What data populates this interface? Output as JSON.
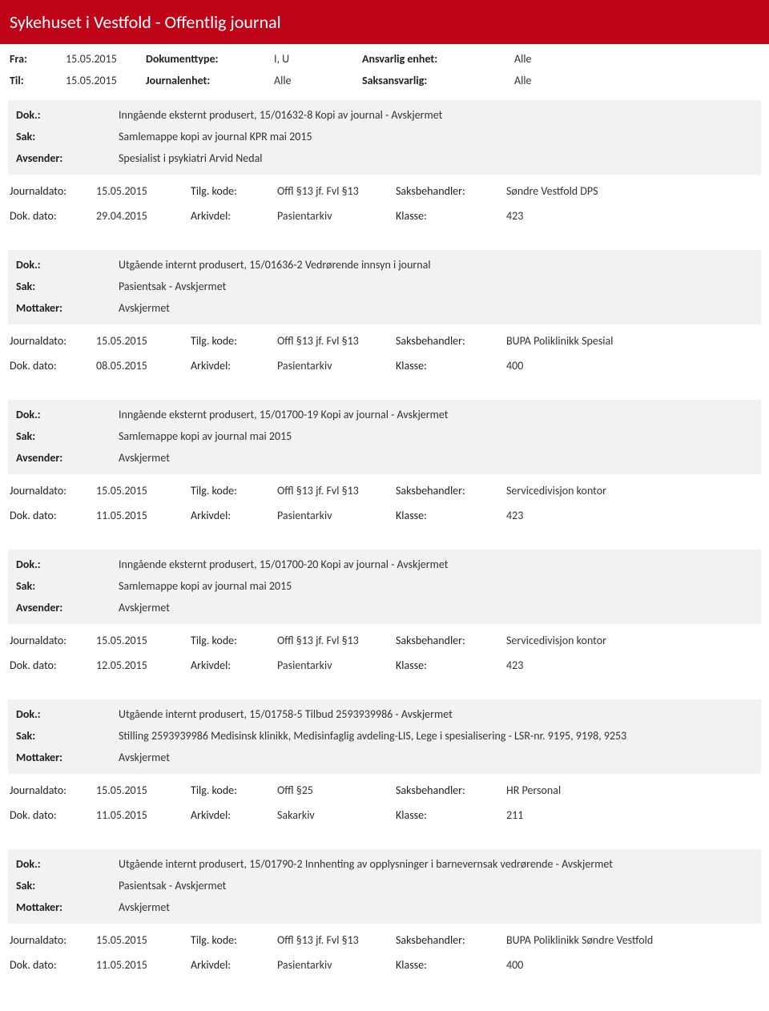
{
  "header": {
    "title": "Sykehuset i Vestfold - Offentlig journal"
  },
  "filters": {
    "fra_label": "Fra:",
    "fra_val": "15.05.2015",
    "til_label": "Til:",
    "til_val": "15.05.2015",
    "doktype_label": "Dokumenttype:",
    "doktype_val": "I, U",
    "journalenhet_label": "Journalenhet:",
    "journalenhet_val": "Alle",
    "ansvarlig_label": "Ansvarlig enhet:",
    "ansvarlig_val": "Alle",
    "saksansvarlig_label": "Saksansvarlig:",
    "saksansvarlig_val": "Alle"
  },
  "labels": {
    "dok": "Dok.:",
    "sak": "Sak:",
    "avsender": "Avsender:",
    "mottaker": "Mottaker:",
    "journaldato": "Journaldato:",
    "dokdato": "Dok. dato:",
    "tilgkode": "Tilg. kode:",
    "arkivdel": "Arkivdel:",
    "saksbehandler": "Saksbehandler:",
    "klasse": "Klasse:"
  },
  "entries": [
    {
      "dok": "Inngående eksternt produsert, 15/01632-8 Kopi av journal - Avskjermet",
      "sak": "Samlemappe kopi av journal KPR mai 2015",
      "party_label": "Avsender:",
      "party": "Spesialist i psykiatri Arvid Nedal",
      "journaldato": "15.05.2015",
      "tilgkode": "Offl §13 jf. Fvl §13",
      "saksbehandler": "Søndre Vestfold DPS",
      "dokdato": "29.04.2015",
      "arkivdel": "Pasientarkiv",
      "klasse": "423"
    },
    {
      "dok": "Utgående internt produsert, 15/01636-2 Vedrørende innsyn i journal",
      "sak": "Pasientsak - Avskjermet",
      "party_label": "Mottaker:",
      "party": "Avskjermet",
      "journaldato": "15.05.2015",
      "tilgkode": "Offl §13 jf. Fvl §13",
      "saksbehandler": "BUPA Poliklinikk Spesial",
      "dokdato": "08.05.2015",
      "arkivdel": "Pasientarkiv",
      "klasse": "400"
    },
    {
      "dok": "Inngående eksternt produsert, 15/01700-19 Kopi av journal - Avskjermet",
      "sak": "Samlemappe kopi av journal mai 2015",
      "party_label": "Avsender:",
      "party": "Avskjermet",
      "journaldato": "15.05.2015",
      "tilgkode": "Offl §13 jf. Fvl §13",
      "saksbehandler": "Servicedivisjon kontor",
      "dokdato": "11.05.2015",
      "arkivdel": "Pasientarkiv",
      "klasse": "423"
    },
    {
      "dok": "Inngående eksternt produsert, 15/01700-20 Kopi av journal - Avskjermet",
      "sak": "Samlemappe kopi av journal mai 2015",
      "party_label": "Avsender:",
      "party": "Avskjermet",
      "journaldato": "15.05.2015",
      "tilgkode": "Offl §13 jf. Fvl §13",
      "saksbehandler": "Servicedivisjon kontor",
      "dokdato": "12.05.2015",
      "arkivdel": "Pasientarkiv",
      "klasse": "423"
    },
    {
      "dok": "Utgående internt produsert, 15/01758-5 Tilbud 2593939986 - Avskjermet",
      "sak": "Stilling 2593939986 Medisinsk klinikk, Medisinfaglig avdeling-LIS, Lege i spesialisering - LSR-nr. 9195, 9198, 9253",
      "party_label": "Mottaker:",
      "party": "Avskjermet",
      "journaldato": "15.05.2015",
      "tilgkode": "Offl §25",
      "saksbehandler": "HR Personal",
      "dokdato": "11.05.2015",
      "arkivdel": "Sakarkiv",
      "klasse": "211"
    },
    {
      "dok": "Utgående internt produsert, 15/01790-2 Innhenting av opplysninger i barnevernsak vedrørende - Avskjermet",
      "sak": "Pasientsak - Avskjermet",
      "party_label": "Mottaker:",
      "party": "Avskjermet",
      "journaldato": "15.05.2015",
      "tilgkode": "Offl §13 jf. Fvl §13",
      "saksbehandler": "BUPA Poliklinikk Søndre Vestfold",
      "dokdato": "11.05.2015",
      "arkivdel": "Pasientarkiv",
      "klasse": "400"
    }
  ]
}
